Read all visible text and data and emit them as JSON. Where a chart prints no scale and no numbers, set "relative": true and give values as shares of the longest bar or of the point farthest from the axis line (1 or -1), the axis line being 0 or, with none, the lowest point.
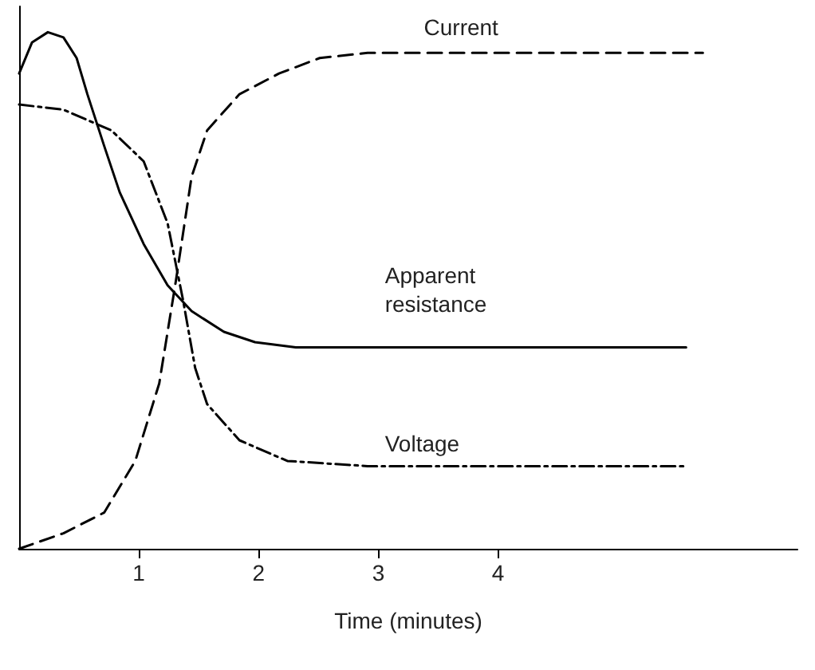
{
  "chart_data": {
    "type": "line",
    "relative": true,
    "xlabel": "Time (minutes)",
    "xlim": [
      0,
      6.5
    ],
    "xticks": [
      1,
      2,
      3,
      4
    ],
    "grid": false,
    "legend": false,
    "marker": "none",
    "series": [
      {
        "name": "Current",
        "color": "#000000",
        "line_style": "dashed",
        "x": [
          0,
          0.37,
          0.71,
          0.97,
          1.17,
          1.31,
          1.44,
          1.57,
          1.84,
          2.17,
          2.51,
          2.91,
          5.71
        ],
        "values": [
          0,
          0.03,
          0.07,
          0.17,
          0.32,
          0.52,
          0.72,
          0.81,
          0.88,
          0.92,
          0.95,
          0.96,
          0.96
        ]
      },
      {
        "name": "Apparent\nresistance",
        "color": "#000000",
        "line_style": "solid",
        "x": [
          0,
          0.107,
          0.24,
          0.37,
          0.48,
          0.57,
          0.71,
          0.84,
          1.04,
          1.24,
          1.44,
          1.71,
          1.97,
          2.31,
          3.17,
          5.57
        ],
        "values": [
          0.92,
          0.98,
          1.0,
          0.99,
          0.95,
          0.88,
          0.78,
          0.69,
          0.59,
          0.51,
          0.46,
          0.42,
          0.4,
          0.39,
          0.39,
          0.39
        ]
      },
      {
        "name": "Voltage",
        "color": "#000000",
        "line_style": "dashdot",
        "x": [
          0,
          0.37,
          0.77,
          1.04,
          1.24,
          1.37,
          1.47,
          1.57,
          1.84,
          2.24,
          2.91,
          5.57
        ],
        "values": [
          0.86,
          0.85,
          0.81,
          0.75,
          0.63,
          0.48,
          0.35,
          0.28,
          0.21,
          0.17,
          0.16,
          0.16
        ]
      }
    ]
  }
}
